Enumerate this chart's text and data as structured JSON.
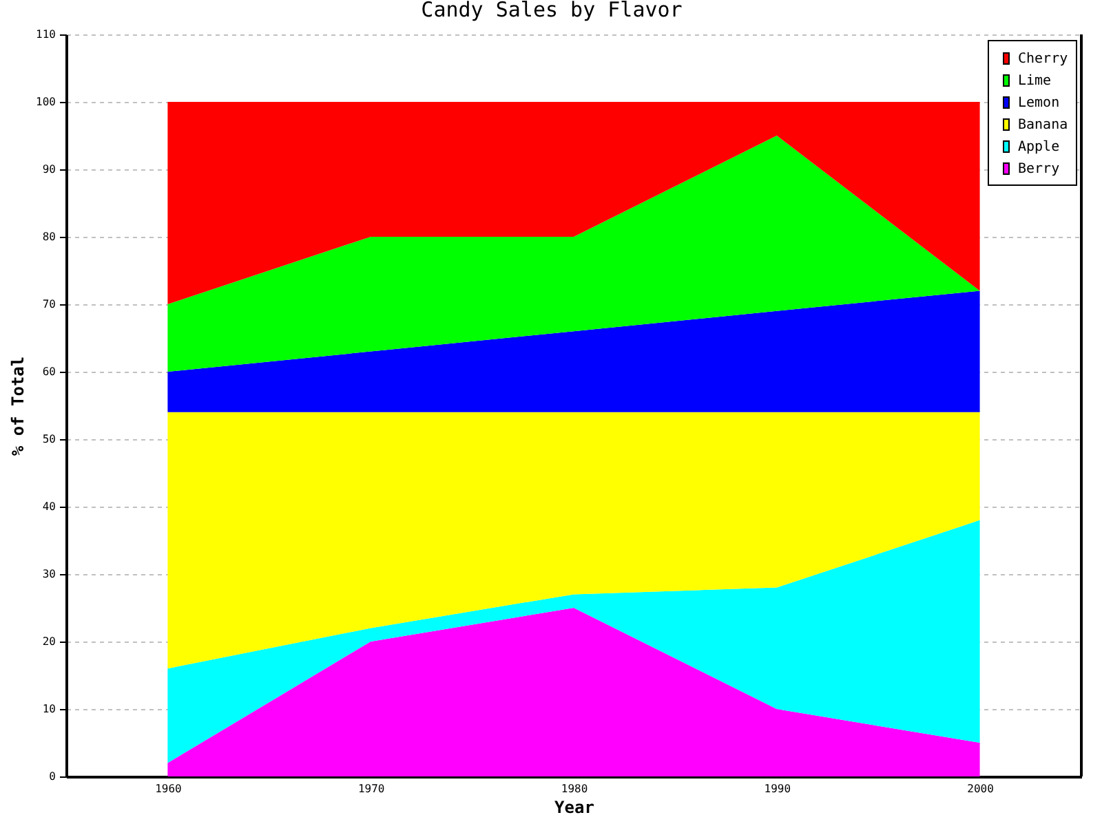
{
  "chart_data": {
    "type": "area",
    "title": "Candy Sales by Flavor",
    "xlabel": "Year",
    "ylabel": "% of Total",
    "x": [
      1960,
      1970,
      1980,
      1990,
      2000
    ],
    "xlim": [
      1955,
      2005
    ],
    "xticks": [
      1960,
      1970,
      1980,
      1990,
      2000
    ],
    "ylim": [
      0,
      110
    ],
    "yticks": [
      0,
      10,
      20,
      30,
      40,
      50,
      60,
      70,
      80,
      90,
      100,
      110
    ],
    "stacked": true,
    "grid": "y",
    "legend": "top right",
    "series": [
      {
        "name": "Berry",
        "color": "#ff00ff",
        "values": [
          2,
          20,
          25,
          10,
          5
        ]
      },
      {
        "name": "Apple",
        "color": "#00ffff",
        "values": [
          14,
          2,
          2,
          18,
          33
        ]
      },
      {
        "name": "Banana",
        "color": "#ffff00",
        "values": [
          38,
          32,
          27,
          26,
          16
        ]
      },
      {
        "name": "Lemon",
        "color": "#0000ff",
        "values": [
          6,
          9,
          12,
          15,
          18
        ]
      },
      {
        "name": "Lime",
        "color": "#00ff00",
        "values": [
          10,
          17,
          14,
          26,
          0
        ]
      },
      {
        "name": "Cherry",
        "color": "#ff0000",
        "values": [
          30,
          20,
          20,
          5,
          28
        ]
      }
    ]
  }
}
